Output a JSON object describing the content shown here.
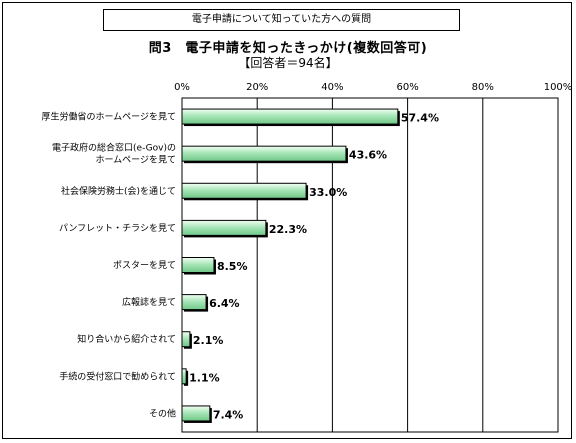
{
  "header": {
    "question_banner": "電子申請について知っていた方への質問"
  },
  "chart_data": {
    "type": "bar",
    "orientation": "horizontal",
    "title": "問3　電子申請を知ったきっかけ(複数回答可)",
    "subtitle": "【回答者＝94名】",
    "categories": [
      [
        "厚生労働省のホームページを見て"
      ],
      [
        "電子政府の総合窓口(e-Gov)の",
        "ホームページを見て"
      ],
      [
        "社会保険労務士(会)を通じて"
      ],
      [
        "パンフレット・チラシを見て"
      ],
      [
        "ポスターを見て"
      ],
      [
        "広報誌を見て"
      ],
      [
        "知り合いから紹介されて"
      ],
      [
        "手続の受付窓口で勧められて"
      ],
      [
        "その他"
      ]
    ],
    "values": [
      57.4,
      43.6,
      33.0,
      22.3,
      8.5,
      6.4,
      2.1,
      1.1,
      7.4
    ],
    "value_labels": [
      "57.4%",
      "43.6%",
      "33.0%",
      "22.3%",
      "8.5%",
      "6.4%",
      "2.1%",
      "1.1%",
      "7.4%"
    ],
    "x_ticks": [
      "0%",
      "20%",
      "40%",
      "60%",
      "80%",
      "100%"
    ],
    "xlim": [
      0,
      100
    ],
    "grid": true,
    "bar_color": "#a8e6b8"
  }
}
